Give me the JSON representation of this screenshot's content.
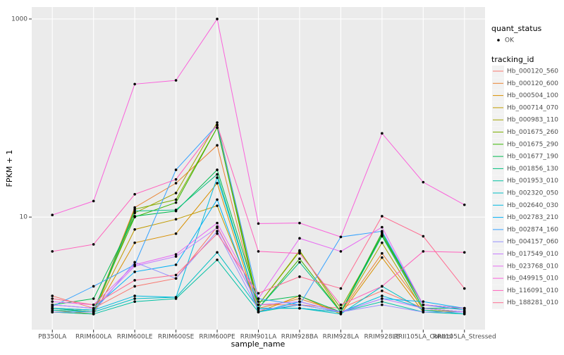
{
  "chart_data": {
    "type": "line",
    "xlabel": "sample_name",
    "ylabel": "FPKM + 1",
    "categories": [
      "PB350LA",
      "RRIM600LA",
      "RRIM600LE",
      "RRIM600SE",
      "RRIM600PE",
      "RRIM901LA",
      "RRIM928BA",
      "RRIM928LA",
      "RRIM928LE",
      "RRII105LA_Control",
      "RRII105LA_Stressed"
    ],
    "ylim": [
      0.73,
      1320
    ],
    "yticks": [
      10,
      1000
    ],
    "log_scale": true,
    "grid": true,
    "legend_title": "tracking_id",
    "point_legend_title": "quant_status",
    "point_legend_label": "OK",
    "point_color": "#000000",
    "series": [
      {
        "name": "Hb_000120_560",
        "color": "#F8766D",
        "values": [
          1.6,
          1.2,
          2.0,
          2.4,
          8.0,
          1.3,
          1.3,
          1.2,
          1.8,
          1.2,
          1.1
        ]
      },
      {
        "name": "Hb_000120_600",
        "color": "#EA8331",
        "values": [
          1.2,
          1.1,
          12.5,
          22,
          53,
          1.2,
          1.5,
          1.1,
          4.3,
          1.2,
          1.1
        ]
      },
      {
        "name": "Hb_000504_100",
        "color": "#D89000",
        "values": [
          1.1,
          1.05,
          5.5,
          6.8,
          22,
          1.1,
          1.6,
          1.05,
          3.9,
          1.1,
          1.1
        ]
      },
      {
        "name": "Hb_000714_070",
        "color": "#C09B00",
        "values": [
          1.2,
          1.1,
          7.5,
          9.5,
          13,
          1.2,
          1.2,
          1.1,
          7.0,
          1.2,
          1.2
        ]
      },
      {
        "name": "Hb_000983_110",
        "color": "#A3A500",
        "values": [
          1.15,
          1.05,
          11,
          17.5,
          90,
          1.3,
          4.6,
          1.1,
          5.5,
          1.15,
          1.1
        ]
      },
      {
        "name": "Hb_001675_260",
        "color": "#7CAE00",
        "values": [
          1.1,
          1.1,
          12,
          15,
          80,
          1.3,
          4.5,
          1.2,
          6.5,
          1.2,
          1.1
        ]
      },
      {
        "name": "Hb_001675_290",
        "color": "#39B600",
        "values": [
          1.2,
          1.15,
          10,
          14,
          80,
          1.2,
          3.8,
          1.1,
          6.6,
          1.3,
          1.2
        ]
      },
      {
        "name": "Hb_001677_190",
        "color": "#00BB4E",
        "values": [
          1.3,
          1.5,
          10.2,
          11.5,
          30,
          1.4,
          1.6,
          1.1,
          6.9,
          1.3,
          1.2
        ]
      },
      {
        "name": "Hb_001856_130",
        "color": "#00BF7D",
        "values": [
          1.2,
          1.1,
          11.5,
          11.8,
          27,
          1.2,
          3.5,
          1.1,
          6.4,
          1.2,
          1.2
        ]
      },
      {
        "name": "Hb_001953_010",
        "color": "#00C1A3",
        "values": [
          1.1,
          1.05,
          1.4,
          1.5,
          3.7,
          1.1,
          1.3,
          1.1,
          1.4,
          1.1,
          1.05
        ]
      },
      {
        "name": "Hb_002320_050",
        "color": "#00BFC4",
        "values": [
          1.15,
          1.1,
          1.5,
          1.55,
          4.4,
          1.2,
          1.2,
          1.05,
          2.0,
          1.15,
          1.05
        ]
      },
      {
        "name": "Hb_002640_030",
        "color": "#00BAE0",
        "values": [
          1.2,
          1.15,
          1.6,
          1.55,
          25,
          1.2,
          1.2,
          1.1,
          1.6,
          1.2,
          1.1
        ]
      },
      {
        "name": "Hb_002783_210",
        "color": "#00B0F6",
        "values": [
          1.3,
          1.2,
          2.8,
          3.3,
          15,
          1.1,
          1.4,
          1.1,
          1.5,
          1.4,
          1.2
        ]
      },
      {
        "name": "Hb_002874_160",
        "color": "#35A2FF",
        "values": [
          1.25,
          2.0,
          3.3,
          30,
          85,
          1.5,
          1.3,
          6.3,
          7.2,
          1.3,
          1.15
        ]
      },
      {
        "name": "Hb_004157_060",
        "color": "#9590FF",
        "values": [
          1.1,
          1.1,
          3.5,
          2.4,
          7.2,
          1.15,
          1.3,
          1.1,
          1.3,
          1.1,
          1.1
        ]
      },
      {
        "name": "Hb_017549_010",
        "color": "#C77CFF",
        "values": [
          1.3,
          1.2,
          3.2,
          4.0,
          7.8,
          1.3,
          1.4,
          1.1,
          1.5,
          1.2,
          1.1
        ]
      },
      {
        "name": "Hb_023768_010",
        "color": "#E76BF3",
        "values": [
          1.4,
          1.3,
          3.3,
          4.2,
          8.7,
          1.5,
          6.1,
          4.5,
          7.9,
          1.3,
          1.2
        ]
      },
      {
        "name": "Hb_049915_010",
        "color": "#FA62DB",
        "values": [
          10.5,
          14.5,
          220,
          240,
          1000,
          8.6,
          8.7,
          6.3,
          70,
          22.5,
          13.3
        ]
      },
      {
        "name": "Hb_116091_010",
        "color": "#FF62BC",
        "values": [
          4.5,
          5.3,
          17,
          24,
          85,
          4.5,
          4.3,
          1.3,
          2.0,
          4.5,
          4.4
        ]
      },
      {
        "name": "Hb_188281_010",
        "color": "#FF6C91",
        "values": [
          1.5,
          1.3,
          2.3,
          2.6,
          6.8,
          1.7,
          2.5,
          1.9,
          10.2,
          6.4,
          1.9
        ]
      }
    ]
  }
}
